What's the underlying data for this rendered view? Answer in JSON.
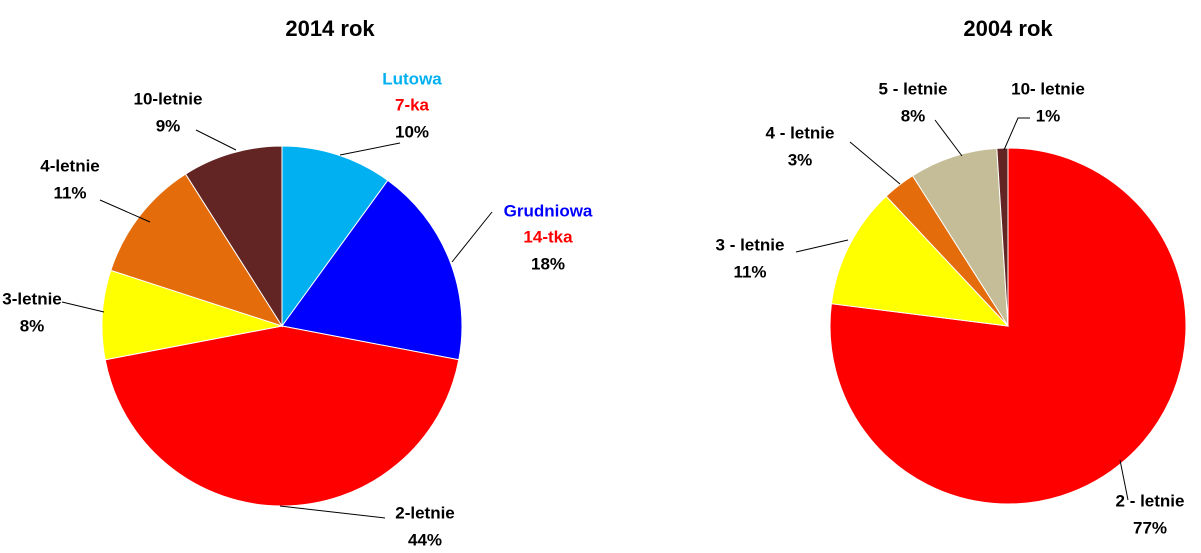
{
  "chart_data": [
    {
      "type": "pie",
      "title": "2014 rok",
      "categories": [
        "Lutowa",
        "Grudniowa",
        "2-letnie",
        "3-letnie",
        "4-letnie",
        "10-letnie"
      ],
      "category_notes": [
        "7-ka",
        "14-tka",
        null,
        null,
        null,
        null
      ],
      "values": [
        10,
        18,
        44,
        8,
        11,
        9
      ],
      "value_labels": [
        "10%",
        "18%",
        "44%",
        "8%",
        "11%",
        "9%"
      ],
      "colors": [
        "#00b0f0",
        "#0000ff",
        "#ff0000",
        "#ffff00",
        "#e46c0a",
        "#632523"
      ],
      "label_colors": [
        "#00b0f0",
        "#0000ff",
        "#000000",
        "#000000",
        "#000000",
        "#000000"
      ],
      "note_color": "#ff0000"
    },
    {
      "type": "pie",
      "title": "2004 rok",
      "categories": [
        "2 - letnie",
        "3 - letnie",
        "4 - letnie",
        "5 - letnie",
        "10- letnie"
      ],
      "values": [
        77,
        11,
        3,
        8,
        1
      ],
      "value_labels": [
        "77%",
        "11%",
        "3%",
        "8%",
        "1%"
      ],
      "colors": [
        "#ff0000",
        "#ffff00",
        "#e46c0a",
        "#c4bd97",
        "#632523"
      ]
    }
  ]
}
